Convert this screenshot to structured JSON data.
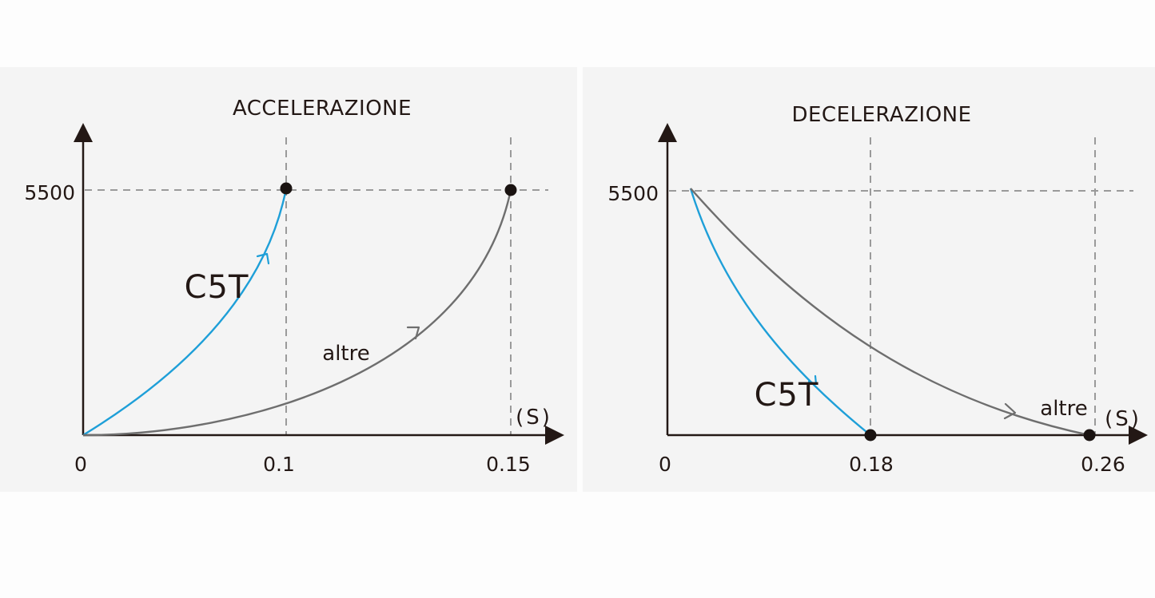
{
  "chart_data": [
    {
      "type": "line",
      "title": "ACCELERAZIONE",
      "x_unit": "(S)",
      "y_ticks": [
        "5500"
      ],
      "x_ticks": [
        "0",
        "0.1",
        "0.15"
      ],
      "ylim": [
        0,
        5500
      ],
      "xlim": [
        0,
        0.15
      ],
      "grid": false,
      "series": [
        {
          "name": "C5T",
          "color": "#1e9fd8",
          "x": [
            0,
            0.025,
            0.05,
            0.075,
            0.1
          ],
          "y": [
            0,
            1000,
            2250,
            3700,
            5500
          ]
        },
        {
          "name": "altre",
          "color": "#6e6e6e",
          "x": [
            0,
            0.0375,
            0.075,
            0.1125,
            0.15
          ],
          "y": [
            0,
            350,
            1200,
            2700,
            5500
          ]
        }
      ]
    },
    {
      "type": "line",
      "title": "DECELERAZIONE",
      "x_unit": "(S)",
      "y_ticks": [
        "5500"
      ],
      "x_ticks": [
        "0",
        "0.18",
        "0.26"
      ],
      "ylim": [
        0,
        5500
      ],
      "xlim": [
        0,
        0.26
      ],
      "grid": false,
      "series": [
        {
          "name": "C5T",
          "color": "#1e9fd8",
          "x": [
            0.02,
            0.06,
            0.1,
            0.14,
            0.18
          ],
          "y": [
            5500,
            3500,
            2000,
            900,
            0
          ]
        },
        {
          "name": "altre",
          "color": "#6e6e6e",
          "x": [
            0.02,
            0.08,
            0.14,
            0.2,
            0.26
          ],
          "y": [
            5500,
            3300,
            1700,
            600,
            0
          ]
        }
      ]
    }
  ]
}
